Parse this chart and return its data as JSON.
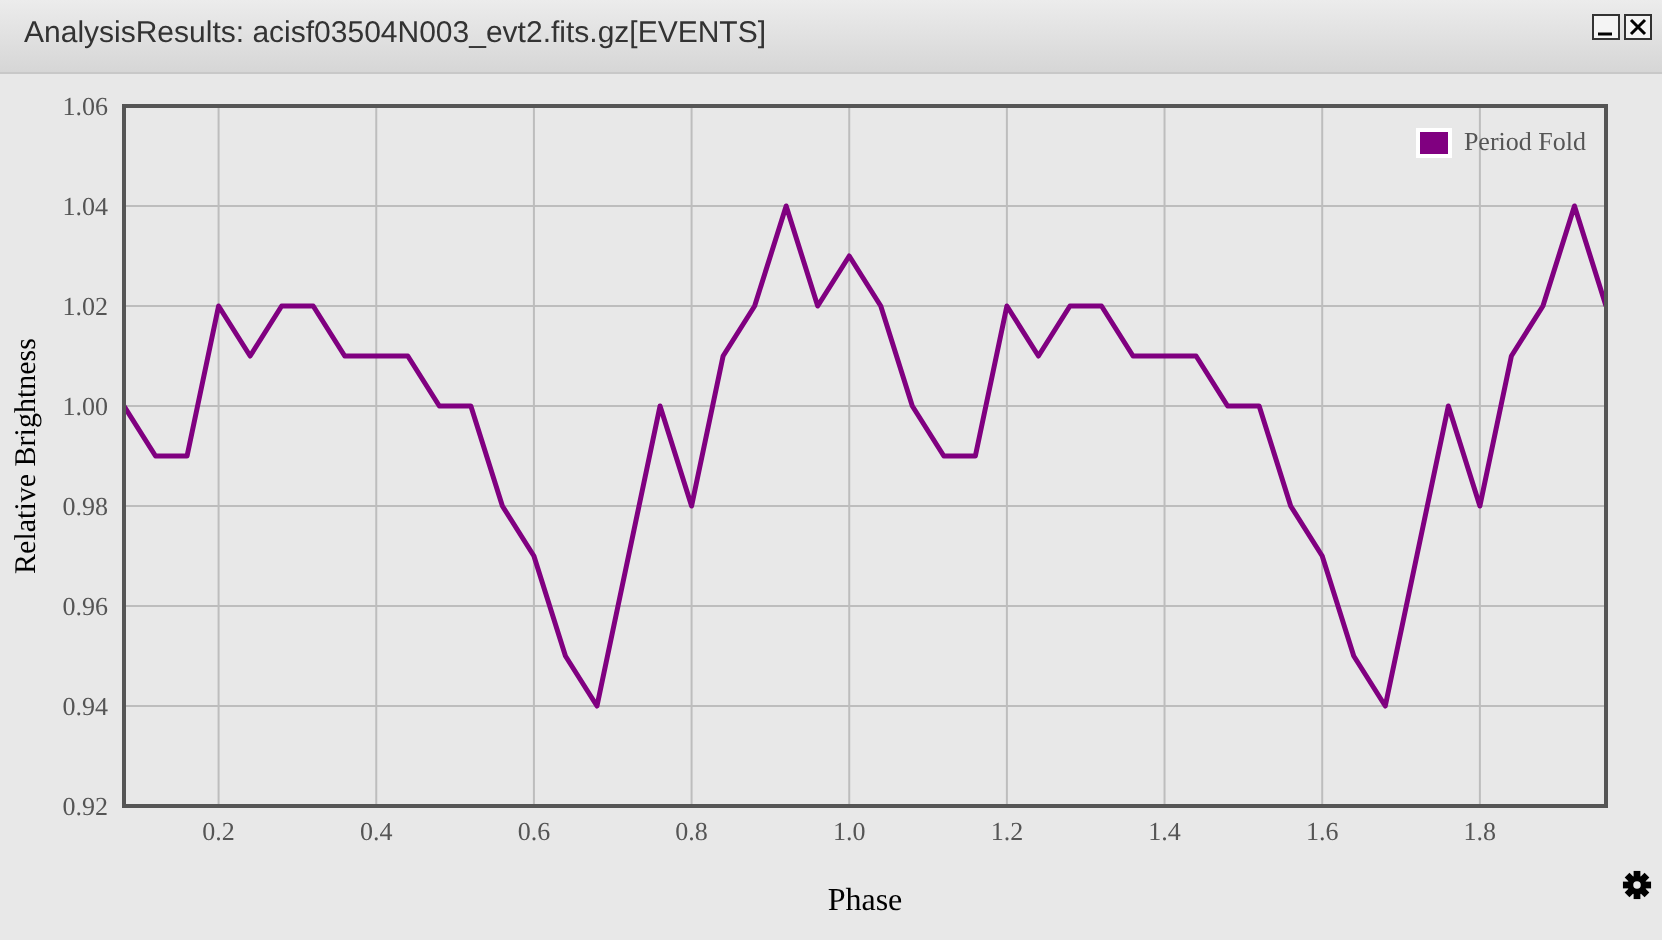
{
  "chart_data": {
    "type": "line",
    "title": "AnalysisResults: acisf03504N003_evt2.fits.gz[EVENTS]",
    "xlabel": "Phase",
    "ylabel": "Relative Brightness",
    "x": [
      0.08,
      0.12,
      0.16,
      0.2,
      0.24,
      0.28,
      0.32,
      0.36,
      0.4,
      0.44,
      0.48,
      0.52,
      0.56,
      0.6,
      0.64,
      0.68,
      0.72,
      0.76,
      0.8,
      0.84,
      0.88,
      0.92,
      0.96,
      1.0,
      1.04,
      1.08,
      1.12,
      1.16,
      1.2,
      1.24,
      1.28,
      1.32,
      1.36,
      1.4,
      1.44,
      1.48,
      1.52,
      1.56,
      1.6,
      1.64,
      1.68,
      1.72,
      1.76,
      1.8,
      1.84,
      1.88,
      1.92,
      1.96
    ],
    "series": [
      {
        "name": "Period Fold",
        "color": "#800080",
        "values": [
          1.0,
          0.99,
          0.99,
          1.02,
          1.01,
          1.02,
          1.02,
          1.01,
          1.01,
          1.01,
          1.0,
          1.0,
          0.98,
          0.97,
          0.95,
          0.94,
          0.97,
          1.0,
          0.98,
          1.01,
          1.02,
          1.04,
          1.02,
          1.03,
          1.02,
          1.0,
          0.99,
          0.99,
          1.02,
          1.01,
          1.02,
          1.02,
          1.01,
          1.01,
          1.01,
          1.0,
          1.0,
          0.98,
          0.97,
          0.95,
          0.94,
          0.97,
          1.0,
          0.98,
          1.01,
          1.02,
          1.04,
          1.02
        ]
      }
    ],
    "xlim": [
      0.08,
      1.96
    ],
    "xticks": [
      0.2,
      0.4,
      0.6,
      0.8,
      {
        "value": 1,
        "label": "1.0"
      },
      1.2,
      1.4,
      1.6,
      1.8
    ],
    "ylim": [
      0.92,
      1.06
    ],
    "yticks": [
      0.92,
      0.94,
      0.96,
      0.98,
      {
        "value": 1,
        "label": "1.00"
      },
      1.02,
      1.04,
      1.06
    ],
    "grid": true,
    "legend": "top right",
    "marker": "none",
    "line_style": "solid"
  }
}
